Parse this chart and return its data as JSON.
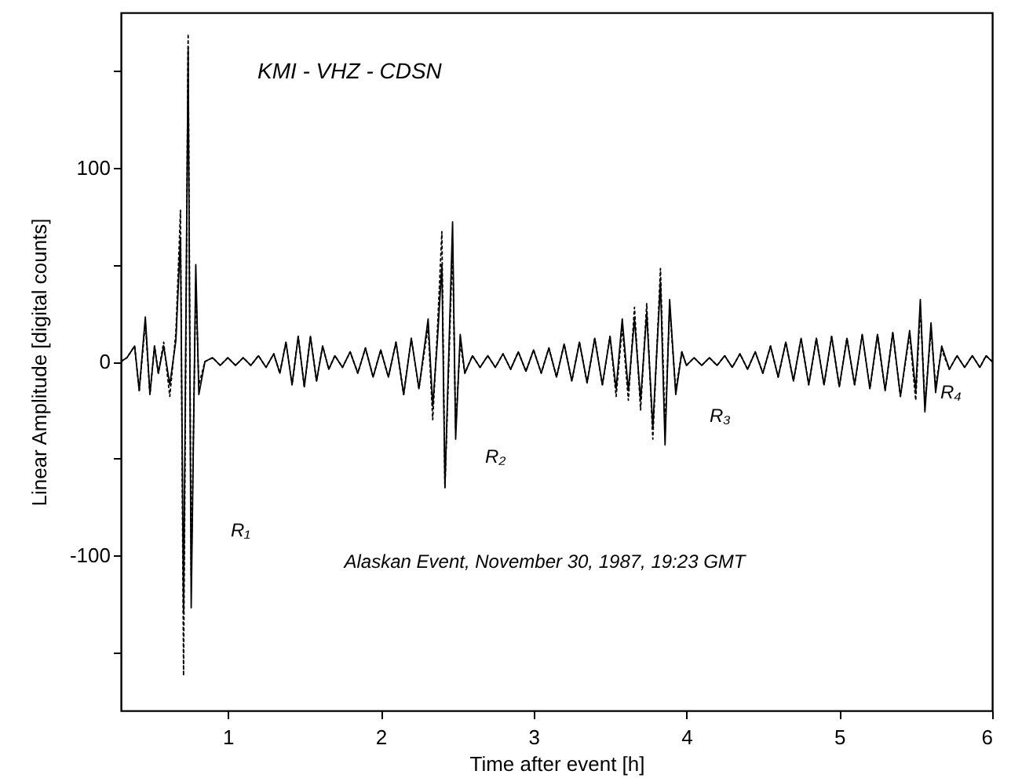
{
  "chart_data": {
    "type": "line",
    "title": "KMI - VHZ - CDSN",
    "xlabel": "Time after event [h]",
    "ylabel": "Linear Amplitude [digital counts]",
    "x": [
      0.3,
      0.34,
      0.39,
      0.42,
      0.46,
      0.49,
      0.52,
      0.545,
      0.58,
      0.62,
      0.66,
      0.69,
      0.71,
      0.74,
      0.76,
      0.79,
      0.81,
      0.85,
      0.9,
      0.95,
      1.0,
      1.05,
      1.1,
      1.15,
      1.2,
      1.25,
      1.3,
      1.34,
      1.38,
      1.42,
      1.46,
      1.5,
      1.54,
      1.58,
      1.62,
      1.66,
      1.7,
      1.75,
      1.8,
      1.85,
      1.9,
      1.95,
      2.0,
      2.05,
      2.1,
      2.15,
      2.2,
      2.25,
      2.31,
      2.34,
      2.37,
      2.4,
      2.42,
      2.47,
      2.49,
      2.52,
      2.55,
      2.6,
      2.65,
      2.7,
      2.75,
      2.8,
      2.85,
      2.9,
      2.95,
      3.0,
      3.05,
      3.1,
      3.15,
      3.2,
      3.25,
      3.3,
      3.35,
      3.4,
      3.45,
      3.5,
      3.54,
      3.58,
      3.62,
      3.66,
      3.7,
      3.74,
      3.78,
      3.83,
      3.86,
      3.89,
      3.93,
      3.97,
      4.0,
      4.05,
      4.1,
      4.15,
      4.2,
      4.25,
      4.3,
      4.35,
      4.4,
      4.45,
      4.5,
      4.55,
      4.6,
      4.65,
      4.7,
      4.75,
      4.8,
      4.85,
      4.9,
      4.95,
      5.0,
      5.05,
      5.1,
      5.15,
      5.2,
      5.25,
      5.3,
      5.35,
      5.4,
      5.46,
      5.5,
      5.53,
      5.56,
      5.6,
      5.63,
      5.67,
      5.72,
      5.77,
      5.82,
      5.87,
      5.92,
      5.96,
      6.0
    ],
    "series": [
      {
        "color": "#000000",
        "line_style": "dotted",
        "values": [
          0,
          2,
          8,
          -15,
          20,
          -17,
          8,
          -6,
          10,
          -18,
          15,
          78,
          -162,
          169,
          -110,
          40,
          -12,
          0,
          2,
          -2,
          2,
          -2,
          2,
          -2,
          3,
          -3,
          4,
          -6,
          10,
          -12,
          13,
          -13,
          13,
          -10,
          8,
          -4,
          3,
          -3,
          5,
          -6,
          7,
          -8,
          6,
          -8,
          10,
          -17,
          12,
          -14,
          18,
          -30,
          15,
          67,
          -65,
          60,
          -35,
          10,
          -6,
          3,
          -3,
          3,
          -3,
          4,
          -4,
          5,
          -5,
          6,
          -6,
          7,
          -8,
          9,
          -10,
          10,
          -11,
          12,
          -12,
          13,
          -18,
          18,
          -20,
          28,
          -25,
          30,
          -40,
          48,
          -35,
          28,
          -15,
          5,
          -2,
          2,
          -2,
          2,
          -2,
          3,
          -3,
          4,
          -4,
          5,
          -6,
          8,
          -8,
          10,
          -10,
          12,
          -12,
          12,
          -12,
          13,
          -13,
          12,
          -12,
          14,
          -14,
          14,
          -15,
          15,
          -18,
          14,
          -20,
          28,
          -22,
          16,
          -12,
          6,
          -4,
          3,
          -3,
          3,
          -3,
          3,
          0
        ]
      },
      {
        "color": "#000000",
        "line_style": "solid",
        "values": [
          0,
          2,
          8,
          -15,
          23,
          -17,
          8,
          -6,
          8,
          -12,
          11,
          64,
          -129,
          162,
          -127,
          50,
          -17,
          0,
          2,
          -2,
          2,
          -2,
          2,
          -2,
          3,
          -3,
          4,
          -6,
          10,
          -12,
          13,
          -13,
          13,
          -10,
          8,
          -4,
          3,
          -3,
          5,
          -6,
          7,
          -8,
          6,
          -8,
          10,
          -17,
          12,
          -14,
          22,
          -23,
          10,
          50,
          -65,
          72,
          -40,
          14,
          -6,
          3,
          -3,
          3,
          -3,
          4,
          -4,
          5,
          -5,
          6,
          -6,
          7,
          -8,
          9,
          -10,
          10,
          -11,
          12,
          -12,
          13,
          -14,
          22,
          -15,
          22,
          -20,
          25,
          -34,
          41,
          -43,
          32,
          -17,
          5,
          -2,
          2,
          -2,
          2,
          -2,
          3,
          -3,
          4,
          -4,
          5,
          -6,
          8,
          -8,
          10,
          -10,
          12,
          -12,
          12,
          -12,
          13,
          -13,
          12,
          -12,
          14,
          -14,
          14,
          -15,
          15,
          -18,
          16,
          -15,
          32,
          -26,
          20,
          -16,
          8,
          -4,
          3,
          -3,
          3,
          -3,
          3,
          0
        ]
      }
    ],
    "xlim": [
      0.3,
      6
    ],
    "xticks": [
      1,
      2,
      3,
      4,
      5,
      6
    ],
    "ylim": [
      -180,
      180
    ],
    "yticks": [
      {
        "value": -150,
        "label": null
      },
      -100,
      {
        "value": -50,
        "label": null
      },
      0,
      {
        "value": 50,
        "label": null
      },
      100,
      {
        "value": 150,
        "label": null
      }
    ],
    "annotations": [
      "R₁",
      "R₂",
      "R₃",
      "R₄",
      "Alaskan Event, November 30, 1987, 19:23 GMT"
    ]
  }
}
